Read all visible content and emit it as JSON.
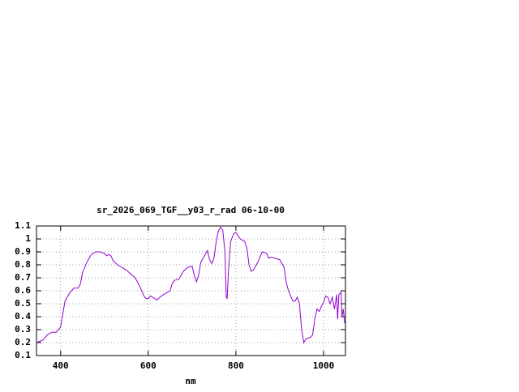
{
  "chart_data": {
    "type": "line",
    "title": "sr_2026_069_TGF__y03_r_rad 06-10-00",
    "x_label": "nm",
    "x": [
      345,
      360,
      370,
      380,
      390,
      400,
      405,
      410,
      420,
      430,
      440,
      445,
      450,
      460,
      470,
      480,
      490,
      500,
      505,
      510,
      515,
      520,
      530,
      540,
      550,
      560,
      570,
      580,
      590,
      595,
      600,
      605,
      610,
      620,
      630,
      640,
      650,
      655,
      660,
      670,
      680,
      690,
      700,
      705,
      710,
      715,
      720,
      730,
      735,
      740,
      745,
      750,
      755,
      760,
      765,
      770,
      775,
      778,
      780,
      783,
      788,
      795,
      800,
      810,
      820,
      825,
      830,
      835,
      840,
      850,
      860,
      870,
      875,
      880,
      890,
      900,
      910,
      915,
      920,
      925,
      930,
      935,
      940,
      945,
      950,
      955,
      960,
      970,
      975,
      980,
      985,
      990,
      995,
      1000,
      1005,
      1010,
      1015,
      1020,
      1025,
      1030,
      1032,
      1035,
      1040,
      1042,
      1045,
      1048
    ],
    "values": [
      0.2,
      0.22,
      0.26,
      0.28,
      0.28,
      0.32,
      0.42,
      0.52,
      0.58,
      0.62,
      0.62,
      0.65,
      0.74,
      0.82,
      0.88,
      0.9,
      0.9,
      0.89,
      0.87,
      0.88,
      0.87,
      0.83,
      0.8,
      0.78,
      0.76,
      0.73,
      0.7,
      0.64,
      0.56,
      0.54,
      0.54,
      0.56,
      0.55,
      0.53,
      0.56,
      0.58,
      0.6,
      0.66,
      0.68,
      0.69,
      0.75,
      0.78,
      0.79,
      0.72,
      0.67,
      0.72,
      0.82,
      0.88,
      0.91,
      0.84,
      0.81,
      0.85,
      0.98,
      1.06,
      1.09,
      1.07,
      0.9,
      0.55,
      0.54,
      0.75,
      0.98,
      1.04,
      1.05,
      1.0,
      0.98,
      0.93,
      0.8,
      0.75,
      0.76,
      0.82,
      0.9,
      0.89,
      0.85,
      0.86,
      0.85,
      0.84,
      0.78,
      0.66,
      0.6,
      0.56,
      0.52,
      0.52,
      0.55,
      0.5,
      0.3,
      0.2,
      0.23,
      0.24,
      0.26,
      0.38,
      0.46,
      0.44,
      0.48,
      0.51,
      0.56,
      0.55,
      0.5,
      0.55,
      0.46,
      0.57,
      0.38,
      0.57,
      0.59,
      0.4,
      0.46,
      0.35
    ],
    "color": "#9400d3",
    "xlim": [
      345,
      1050
    ],
    "xticks": [
      400,
      600,
      800,
      1000
    ],
    "ylim": [
      0.1,
      1.1
    ],
    "yticks": [
      0.1,
      0.2,
      0.3,
      0.4,
      0.5,
      0.6,
      0.7,
      0.8,
      0.9,
      1,
      1.1
    ],
    "grid": true
  }
}
